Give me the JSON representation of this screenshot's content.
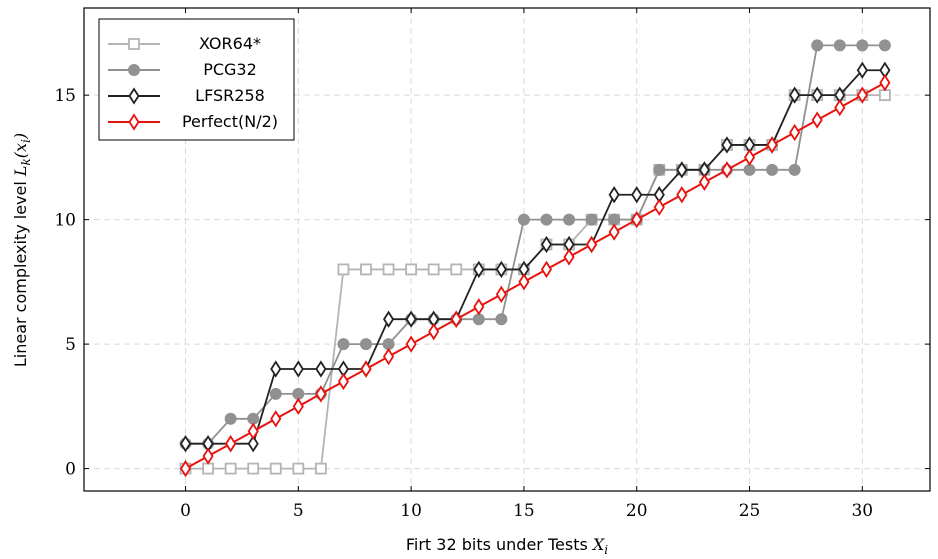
{
  "chart_data": {
    "type": "line",
    "title": "",
    "xlabel": "Firt 32 bits under Tests ",
    "xlabel_math": "X",
    "xlabel_sub": "i",
    "ylabel": "Linear complexity level ",
    "ylabel_math": "L",
    "ylabel_sub": "k",
    "ylabel_arg": "(x",
    "ylabel_arg_sub": "i",
    "ylabel_close": ")",
    "xlim": [
      -4.5,
      33
    ],
    "ylim": [
      -0.9,
      18.5
    ],
    "x_ticks": [
      0,
      5,
      10,
      15,
      20,
      25,
      30
    ],
    "y_ticks": [
      0,
      5,
      10,
      15
    ],
    "grid": true,
    "legend_position": "top-left",
    "x": [
      0,
      1,
      2,
      3,
      4,
      5,
      6,
      7,
      8,
      9,
      10,
      11,
      12,
      13,
      14,
      15,
      16,
      17,
      18,
      19,
      20,
      21,
      22,
      23,
      24,
      25,
      26,
      27,
      28,
      29,
      30,
      31
    ],
    "series": [
      {
        "name": "XOR64*",
        "color": "#b4b4b4",
        "marker": "square",
        "values": [
          0,
          0,
          0,
          0,
          0,
          0,
          0,
          8,
          8,
          8,
          8,
          8,
          8,
          8,
          8,
          8,
          9,
          9,
          10,
          10,
          10,
          12,
          12,
          12,
          13,
          13,
          13,
          15,
          15,
          15,
          15,
          15
        ]
      },
      {
        "name": "PCG32",
        "color": "#919191",
        "marker": "circle",
        "values": [
          1,
          1,
          2,
          2,
          3,
          3,
          3,
          5,
          5,
          5,
          6,
          6,
          6,
          6,
          6,
          10,
          10,
          10,
          10,
          10,
          10,
          12,
          12,
          12,
          12,
          12,
          12,
          12,
          17,
          17,
          17,
          17
        ]
      },
      {
        "name": "LFSR258",
        "color": "#222222",
        "marker": "diamond",
        "values": [
          1,
          1,
          1,
          1,
          4,
          4,
          4,
          4,
          4,
          6,
          6,
          6,
          6,
          8,
          8,
          8,
          9,
          9,
          9,
          11,
          11,
          11,
          12,
          12,
          13,
          13,
          13,
          15,
          15,
          15,
          16,
          16
        ]
      },
      {
        "name": "Perfect(N/2)",
        "color": "#e8120e",
        "marker": "diamond",
        "values": [
          0,
          0.5,
          1,
          1.5,
          2,
          2.5,
          3,
          3.5,
          4,
          4.5,
          5,
          5.5,
          6,
          6.5,
          7,
          7.5,
          8,
          8.5,
          9,
          9.5,
          10,
          10.5,
          11,
          11.5,
          12,
          12.5,
          13,
          13.5,
          14,
          14.5,
          15,
          15.5
        ]
      }
    ]
  }
}
